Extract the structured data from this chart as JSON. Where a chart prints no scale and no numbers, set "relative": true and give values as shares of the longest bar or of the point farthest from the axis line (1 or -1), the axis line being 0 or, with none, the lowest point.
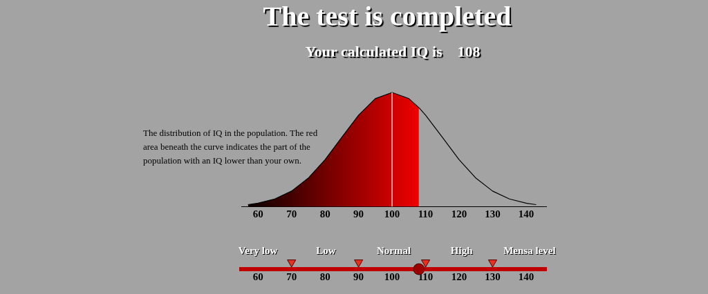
{
  "chart_data": {
    "type": "area",
    "title": "The test is completed",
    "subtitle": "Your calculated IQ is    108",
    "relative": true,
    "grid": false,
    "legend": false,
    "annotations": [
      "The distribution of IQ in the population. The red area beneath the curve indicates the part of the population with an IQ lower than your own.",
      "Very low",
      "Low",
      "Normal",
      "High",
      "Mensa level"
    ],
    "xlim": [
      55,
      146
    ],
    "xticks": [
      60,
      70,
      80,
      90,
      100,
      110,
      120,
      130,
      140
    ],
    "x2lim": [
      55,
      146
    ],
    "x2ticks": [
      60,
      70,
      80,
      90,
      100,
      110,
      120,
      130,
      140
    ],
    "ref_lines": [
      {
        "axis": "x",
        "value": 100,
        "color": "#ffffff"
      }
    ],
    "series": [
      {
        "color": "#ff0000",
        "x": [
          57,
          60,
          65,
          70,
          75,
          80,
          85,
          90,
          95,
          100,
          105,
          108
        ],
        "values": [
          0.016,
          0.029,
          0.066,
          0.135,
          0.249,
          0.411,
          0.607,
          0.801,
          0.946,
          1,
          0.946,
          0.867
        ]
      },
      {
        "type": "line",
        "color": "#000000",
        "x": [
          57,
          60,
          65,
          70,
          75,
          80,
          85,
          90,
          95,
          100,
          105,
          108,
          110,
          115,
          120,
          125,
          130,
          135,
          140,
          143
        ],
        "values": [
          0.016,
          0.029,
          0.066,
          0.135,
          0.249,
          0.411,
          0.607,
          0.801,
          0.946,
          1,
          0.946,
          0.867,
          0.801,
          0.607,
          0.411,
          0.249,
          0.135,
          0.066,
          0.029,
          0.016
        ]
      },
      {
        "type": "scatter",
        "color": "#e8301e",
        "marker": "triangle",
        "x": [
          70,
          90,
          110,
          130
        ],
        "values": [
          -0.49,
          -0.49,
          -0.49,
          -0.49
        ]
      },
      {
        "type": "scatter",
        "color": "#9a0000",
        "marker": "circle",
        "x": [
          108
        ],
        "values": [
          -0.55
        ]
      }
    ]
  }
}
